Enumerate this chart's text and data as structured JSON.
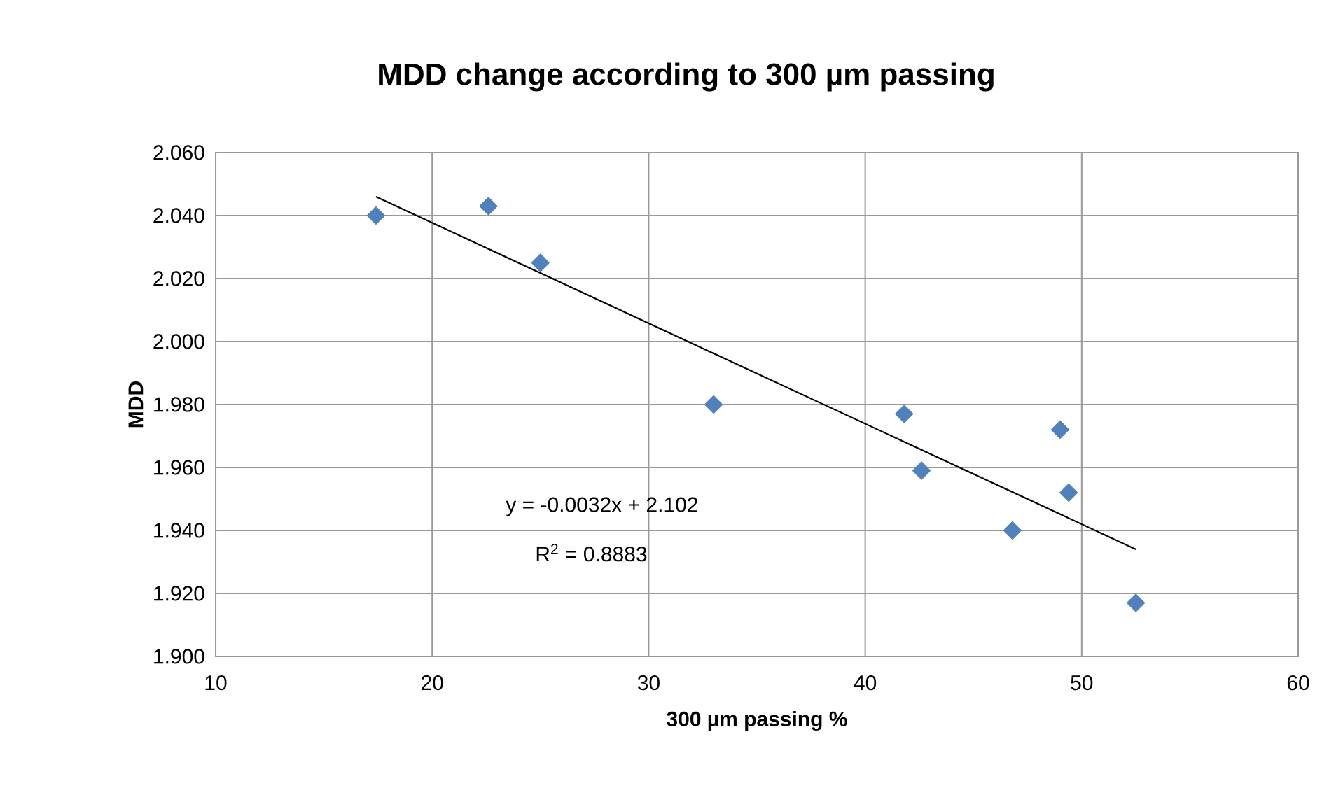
{
  "chart_data": {
    "type": "scatter",
    "title": "MDD change according to 300 µm passing",
    "xlabel": "300 µm passing %",
    "ylabel": "MDD",
    "xlim": [
      10,
      60
    ],
    "xticks": [
      10,
      20,
      30,
      40,
      50,
      60
    ],
    "ylim": [
      1.9,
      2.06
    ],
    "yticks": [
      {
        "value": 1.9,
        "label": "1.900"
      },
      {
        "value": 1.92,
        "label": "1.920"
      },
      {
        "value": 1.94,
        "label": "1.940"
      },
      {
        "value": 1.96,
        "label": "1.960"
      },
      {
        "value": 1.98,
        "label": "1.980"
      },
      {
        "value": 2.0,
        "label": "2.000"
      },
      {
        "value": 2.02,
        "label": "2.020"
      },
      {
        "value": 2.04,
        "label": "2.040"
      },
      {
        "value": 2.06,
        "label": "2.060"
      }
    ],
    "grid": true,
    "marker": "diamond",
    "annotations": [
      "y = -0.0032x + 2.102",
      "R$^{2}$ = 0.8883"
    ],
    "series": [
      {
        "color": "#4f81bd",
        "x": [
          17.4,
          22.6,
          25.0,
          33.0,
          41.8,
          42.6,
          46.8,
          49.0,
          49.4,
          52.5
        ],
        "values": [
          2.04,
          2.043,
          2.025,
          1.98,
          1.977,
          1.959,
          1.94,
          1.972,
          1.952,
          1.917
        ]
      },
      {
        "type": "line",
        "color": "#000000",
        "marker": "none",
        "x": [
          17.4,
          52.5
        ],
        "values": [
          2.046,
          1.934
        ]
      }
    ]
  }
}
